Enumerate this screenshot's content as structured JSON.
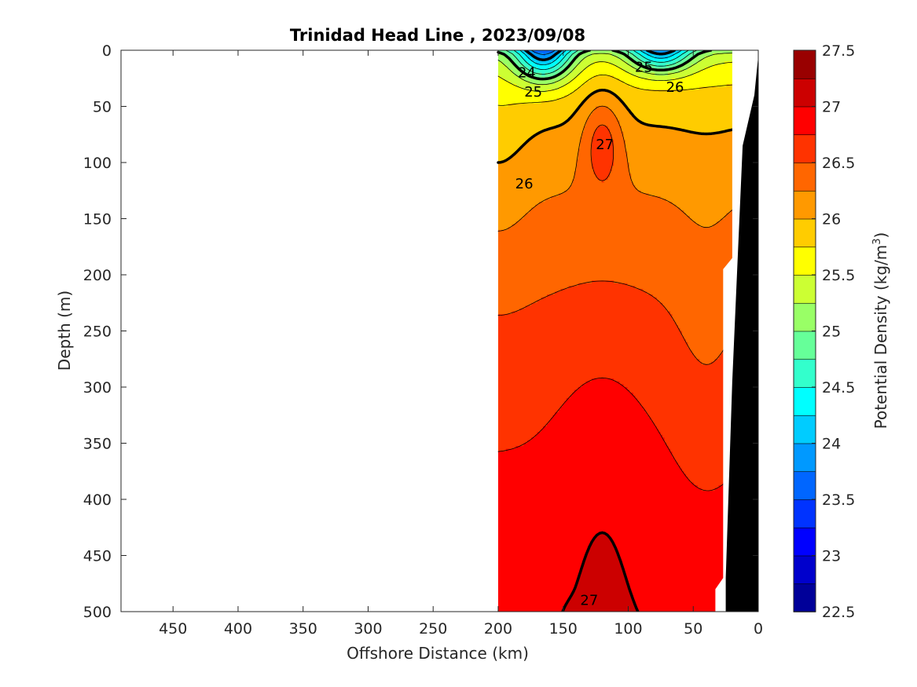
{
  "chart_data": {
    "type": "contour",
    "title": "Trinidad Head Line , 2023/09/08",
    "xlabel": "Offshore Distance (km)",
    "ylabel": "Depth (m)",
    "xlim": [
      490,
      0
    ],
    "ylim": [
      0,
      500
    ],
    "x_reversed": true,
    "y_reversed": true,
    "x_ticks": [
      450,
      400,
      350,
      300,
      250,
      200,
      150,
      100,
      50,
      0
    ],
    "y_ticks": [
      0,
      50,
      100,
      150,
      200,
      250,
      300,
      350,
      400,
      450,
      500
    ],
    "data_x_range_km": [
      200,
      20
    ],
    "colorbar": {
      "label_main": "Potential Density (kg/m",
      "label_sup": "3",
      "label_end": ")",
      "min": 22.5,
      "max": 27.5,
      "step": 0.25,
      "tick_values": [
        22.5,
        23,
        23.5,
        24,
        24.5,
        25,
        25.5,
        26,
        26.5,
        27,
        27.5
      ],
      "tick_labels": [
        "22.5",
        "23",
        "23.5",
        "24",
        "24.5",
        "25",
        "25.5",
        "26",
        "26.5",
        "27",
        "27.5"
      ]
    },
    "contour_labels": [
      {
        "text": "24",
        "x": 178,
        "y": 20
      },
      {
        "text": "25",
        "x": 173,
        "y": 37
      },
      {
        "text": "25",
        "x": 88,
        "y": 15
      },
      {
        "text": "26",
        "x": 64,
        "y": 33
      },
      {
        "text": "27",
        "x": 118,
        "y": 84
      },
      {
        "text": "26",
        "x": 180,
        "y": 119
      },
      {
        "text": "27",
        "x": 130,
        "y": 490
      }
    ],
    "bathymetry": "black"
  }
}
